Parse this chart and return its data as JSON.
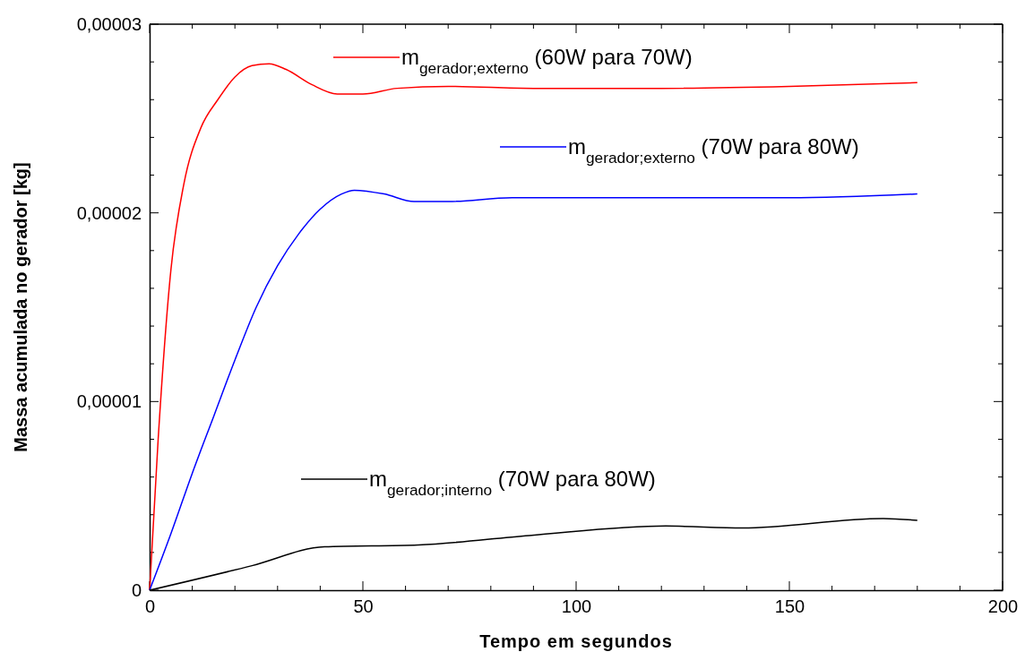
{
  "chart_data": {
    "type": "line",
    "xlabel": "Tempo em segundos",
    "ylabel": "Massa acumulada no gerador [kg]",
    "xlim": [
      0,
      200
    ],
    "ylim": [
      0,
      3e-05
    ],
    "xticks": [
      0,
      {
        "value": 10,
        "label": null
      },
      {
        "value": 20,
        "label": null
      },
      {
        "value": 30,
        "label": null
      },
      {
        "value": 40,
        "label": null
      },
      50,
      {
        "value": 60,
        "label": null
      },
      {
        "value": 70,
        "label": null
      },
      {
        "value": 80,
        "label": null
      },
      {
        "value": 90,
        "label": null
      },
      100,
      {
        "value": 110,
        "label": null
      },
      {
        "value": 120,
        "label": null
      },
      {
        "value": 130,
        "label": null
      },
      {
        "value": 140,
        "label": null
      },
      150,
      {
        "value": 160,
        "label": null
      },
      {
        "value": 170,
        "label": null
      },
      {
        "value": 180,
        "label": null
      },
      {
        "value": 190,
        "label": null
      },
      200
    ],
    "yticks": [
      {
        "value": 0,
        "label": "0"
      },
      {
        "value": 2e-06,
        "label": null
      },
      {
        "value": 4e-06,
        "label": null
      },
      {
        "value": 6e-06,
        "label": null
      },
      {
        "value": 8e-06,
        "label": null
      },
      {
        "value": 1e-05,
        "label": "0,00001"
      },
      {
        "value": 1.2e-05,
        "label": null
      },
      {
        "value": 1.4e-05,
        "label": null
      },
      {
        "value": 1.6e-05,
        "label": null
      },
      {
        "value": 1.8e-05,
        "label": null
      },
      {
        "value": 2e-05,
        "label": "0,00002"
      },
      {
        "value": 2.2e-05,
        "label": null
      },
      {
        "value": 2.4e-05,
        "label": null
      },
      {
        "value": 2.6e-05,
        "label": null
      },
      {
        "value": 2.8e-05,
        "label": null
      },
      {
        "value": 3e-05,
        "label": "0,00003"
      }
    ],
    "grid": false,
    "legend": "top",
    "marker": "none",
    "line_style": "solid",
    "series": [
      {
        "name": "m$_{gerador;externo}$ (60W para 70W)",
        "color": "#ff0000",
        "x": [
          0,
          2,
          5,
          8,
          12,
          16,
          20,
          24,
          28,
          32,
          38,
          44,
          50,
          58,
          70,
          90,
          120,
          150,
          180
        ],
        "values": [
          0,
          8e-06,
          1.7e-05,
          2.15e-05,
          2.45e-05,
          2.6e-05,
          2.72e-05,
          2.78e-05,
          2.79e-05,
          2.76e-05,
          2.68e-05,
          2.63e-05,
          2.63e-05,
          2.66e-05,
          2.67e-05,
          2.66e-05,
          2.66e-05,
          2.67e-05,
          2.69e-05
        ]
      },
      {
        "name": "m$_{gerador;externo}$ (70W para 80W)",
        "color": "#0000ff",
        "x": [
          0,
          5,
          10,
          15,
          20,
          25,
          30,
          35,
          40,
          45,
          48,
          55,
          62,
          70,
          85,
          120,
          150,
          180
        ],
        "values": [
          0,
          3e-06,
          6.2e-06,
          9.2e-06,
          1.22e-05,
          1.5e-05,
          1.72e-05,
          1.89e-05,
          2.02e-05,
          2.1e-05,
          2.12e-05,
          2.1e-05,
          2.06e-05,
          2.06e-05,
          2.08e-05,
          2.08e-05,
          2.08e-05,
          2.1e-05
        ]
      },
      {
        "name": "m$_{gerador;interno}$ (70W para 80W)",
        "color": "#000000",
        "x": [
          0,
          24,
          41,
          63,
          89,
          121,
          139,
          172,
          180
        ],
        "values": [
          0,
          1.3e-06,
          2.3e-06,
          2.4e-06,
          2.9e-06,
          3.4e-06,
          3.3e-06,
          3.8e-06,
          3.7e-06
        ]
      }
    ]
  }
}
